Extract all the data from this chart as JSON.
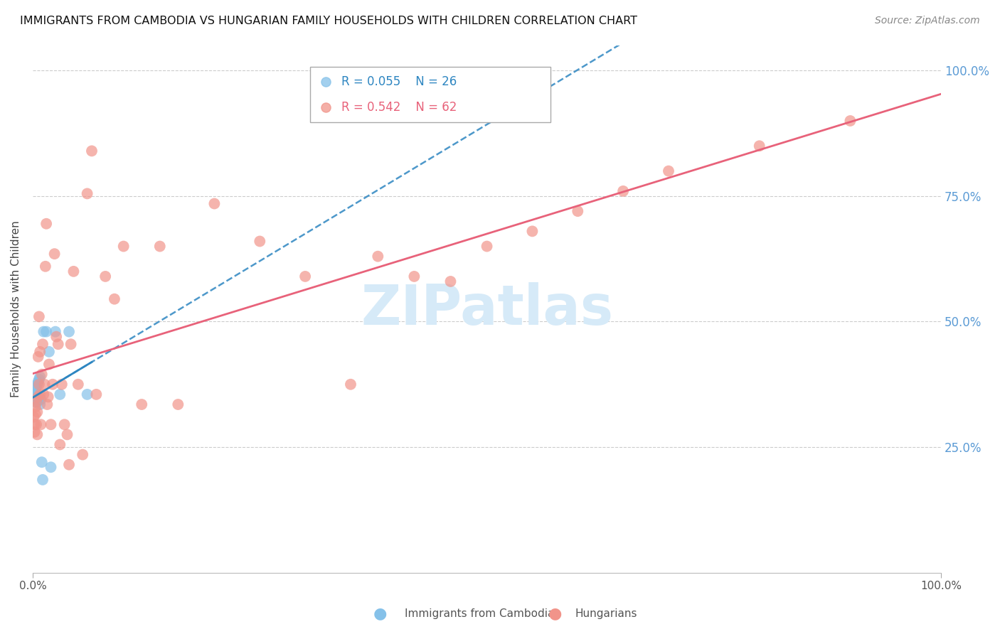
{
  "title": "IMMIGRANTS FROM CAMBODIA VS HUNGARIAN FAMILY HOUSEHOLDS WITH CHILDREN CORRELATION CHART",
  "source": "Source: ZipAtlas.com",
  "ylabel": "Family Households with Children",
  "legend_label1": "Immigrants from Cambodia",
  "legend_label2": "Hungarians",
  "legend_r1": "R = 0.055",
  "legend_n1": "N = 26",
  "legend_r2": "R = 0.542",
  "legend_n2": "N = 62",
  "blue_color": "#85C1E9",
  "pink_color": "#F1948A",
  "blue_line_color": "#2E86C1",
  "pink_line_color": "#E8627A",
  "watermark": "ZIPatlas",
  "watermark_color": "#D6EAF8",
  "blue_x": [
    0.001,
    0.002,
    0.002,
    0.003,
    0.003,
    0.004,
    0.004,
    0.005,
    0.005,
    0.006,
    0.006,
    0.007,
    0.007,
    0.008,
    0.008,
    0.009,
    0.01,
    0.011,
    0.012,
    0.015,
    0.018,
    0.02,
    0.025,
    0.03,
    0.04,
    0.06
  ],
  "blue_y": [
    0.355,
    0.36,
    0.34,
    0.365,
    0.345,
    0.37,
    0.35,
    0.375,
    0.34,
    0.38,
    0.345,
    0.385,
    0.35,
    0.39,
    0.335,
    0.345,
    0.22,
    0.185,
    0.48,
    0.48,
    0.44,
    0.21,
    0.48,
    0.355,
    0.48,
    0.355
  ],
  "pink_x": [
    0.001,
    0.002,
    0.002,
    0.003,
    0.003,
    0.004,
    0.004,
    0.005,
    0.005,
    0.006,
    0.006,
    0.007,
    0.007,
    0.008,
    0.008,
    0.009,
    0.01,
    0.011,
    0.012,
    0.013,
    0.014,
    0.015,
    0.016,
    0.017,
    0.018,
    0.02,
    0.022,
    0.024,
    0.026,
    0.028,
    0.03,
    0.032,
    0.035,
    0.038,
    0.04,
    0.042,
    0.045,
    0.05,
    0.055,
    0.06,
    0.065,
    0.07,
    0.08,
    0.09,
    0.1,
    0.12,
    0.14,
    0.16,
    0.2,
    0.25,
    0.3,
    0.35,
    0.38,
    0.42,
    0.46,
    0.5,
    0.55,
    0.6,
    0.65,
    0.7,
    0.8,
    0.9
  ],
  "pink_y": [
    0.31,
    0.295,
    0.28,
    0.33,
    0.315,
    0.34,
    0.295,
    0.32,
    0.275,
    0.35,
    0.43,
    0.51,
    0.375,
    0.44,
    0.355,
    0.295,
    0.395,
    0.455,
    0.355,
    0.375,
    0.61,
    0.695,
    0.335,
    0.35,
    0.415,
    0.295,
    0.375,
    0.635,
    0.47,
    0.455,
    0.255,
    0.375,
    0.295,
    0.275,
    0.215,
    0.455,
    0.6,
    0.375,
    0.235,
    0.755,
    0.84,
    0.355,
    0.59,
    0.545,
    0.65,
    0.335,
    0.65,
    0.335,
    0.735,
    0.66,
    0.59,
    0.375,
    0.63,
    0.59,
    0.58,
    0.65,
    0.68,
    0.72,
    0.76,
    0.8,
    0.85,
    0.9
  ]
}
